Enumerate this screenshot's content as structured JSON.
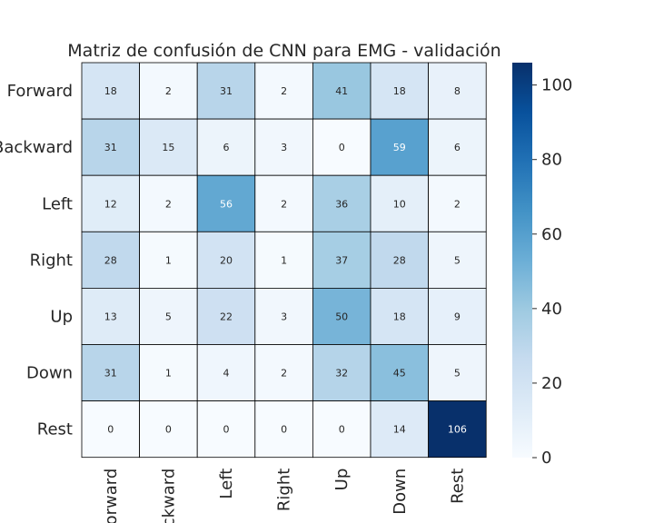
{
  "chart_data": {
    "type": "heatmap",
    "title": "Matriz de confusión de CNN para EMG - validación",
    "rows": [
      "Forward",
      "Backward",
      "Left",
      "Right",
      "Up",
      "Down",
      "Rest"
    ],
    "cols": [
      "Forward",
      "Backward",
      "Left",
      "Right",
      "Up",
      "Down",
      "Rest"
    ],
    "values": [
      [
        18,
        2,
        31,
        2,
        41,
        18,
        8
      ],
      [
        31,
        15,
        6,
        3,
        0,
        59,
        6
      ],
      [
        12,
        2,
        56,
        2,
        36,
        10,
        2
      ],
      [
        28,
        1,
        20,
        1,
        37,
        28,
        5
      ],
      [
        13,
        5,
        22,
        3,
        50,
        18,
        9
      ],
      [
        31,
        1,
        4,
        2,
        32,
        45,
        5
      ],
      [
        0,
        0,
        0,
        0,
        0,
        14,
        106
      ]
    ],
    "colorbar": {
      "min": 0,
      "max": 106,
      "ticks": [
        "0",
        "20",
        "40",
        "60",
        "80",
        "100"
      ]
    },
    "colormap": "Blues"
  }
}
